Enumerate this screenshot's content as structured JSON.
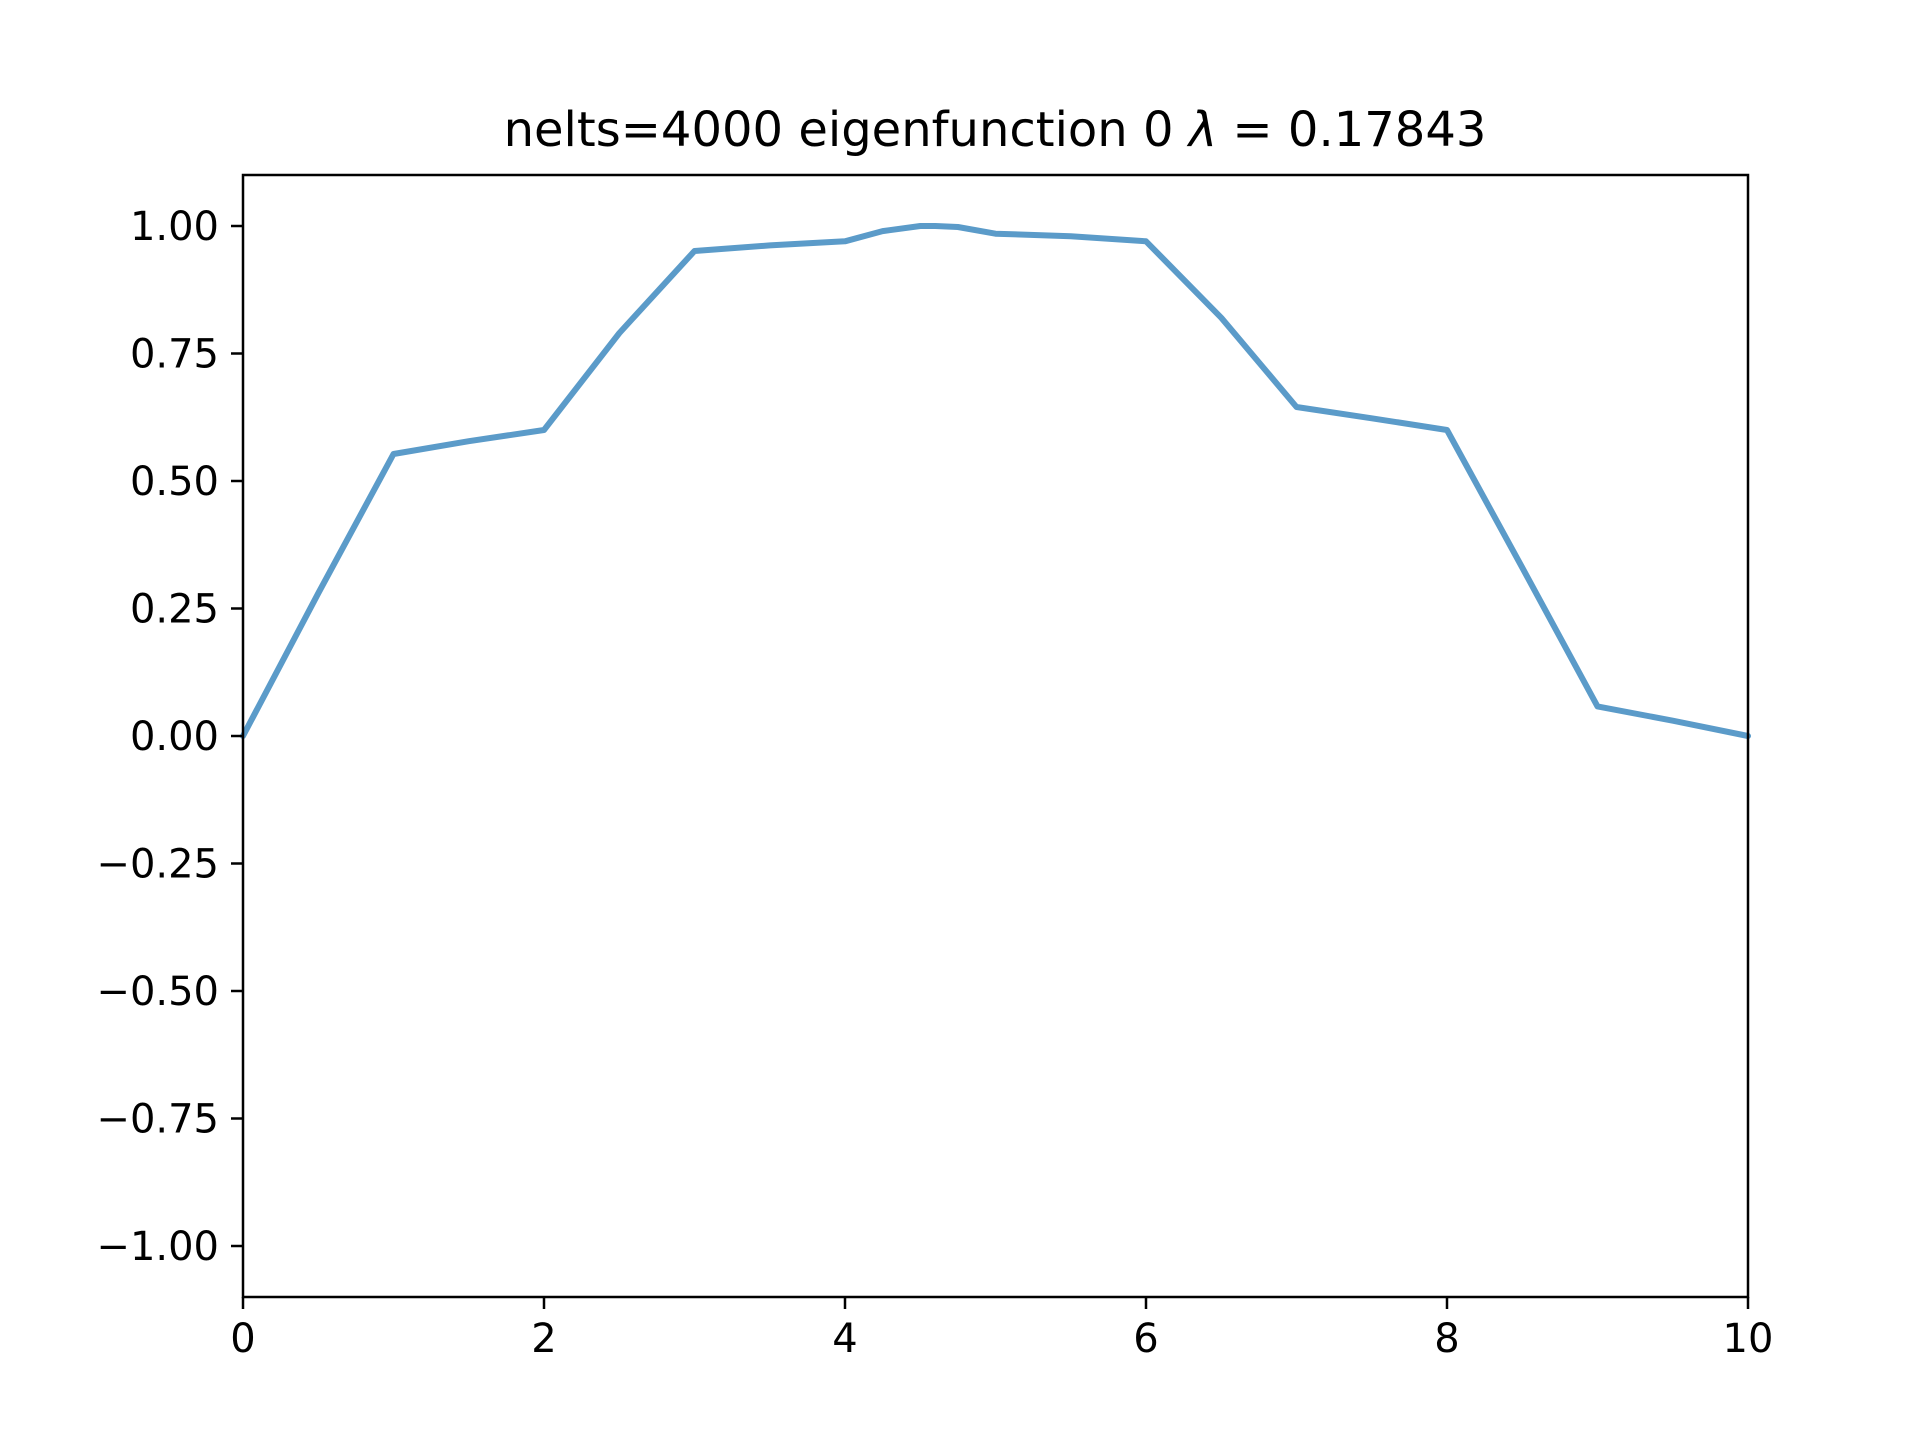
{
  "chart_data": {
    "type": "line",
    "title": "nelts=4000  eigenfunction 0  λ = 0.17843",
    "title_parts": {
      "prefix": "nelts=4000  eigenfunction 0  ",
      "symbol": "λ",
      "suffix": " = 0.17843"
    },
    "xlabel": "",
    "ylabel": "",
    "xlim": [
      0,
      10
    ],
    "ylim": [
      -1.1,
      1.1
    ],
    "xticks": [
      0,
      2,
      4,
      6,
      8,
      10
    ],
    "xtick_labels": [
      "0",
      "2",
      "4",
      "6",
      "8",
      "10"
    ],
    "yticks": [
      -1.0,
      -0.75,
      -0.5,
      -0.25,
      0.0,
      0.25,
      0.5,
      0.75,
      1.0
    ],
    "ytick_labels": [
      "−1.00",
      "−0.75",
      "−0.50",
      "−0.25",
      "0.00",
      "0.25",
      "0.50",
      "0.75",
      "1.00"
    ],
    "grid": false,
    "series": [
      {
        "color": "#5b9bc9",
        "x": [
          0,
          0.5,
          1,
          1.5,
          2,
          2.5,
          3,
          3.5,
          4,
          4.25,
          4.5,
          4.6,
          4.75,
          5,
          5.5,
          6,
          6.5,
          7,
          7.5,
          8,
          8.5,
          9,
          9.5,
          10
        ],
        "y": [
          0.0,
          0.28,
          0.553,
          0.578,
          0.6,
          0.79,
          0.951,
          0.962,
          0.97,
          0.99,
          1.0,
          1.0,
          0.998,
          0.985,
          0.98,
          0.97,
          0.82,
          0.645,
          0.623,
          0.6,
          0.33,
          0.058,
          0.03,
          0.0
        ]
      }
    ]
  }
}
